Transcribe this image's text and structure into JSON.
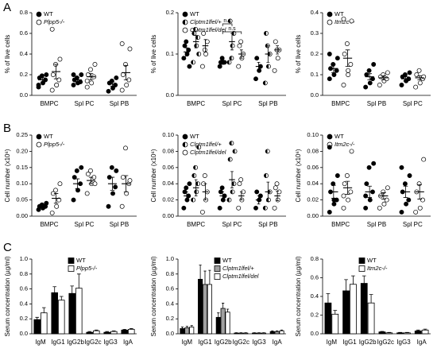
{
  "panel_labels": [
    "A",
    "B",
    "C"
  ],
  "chart_data": [
    {
      "type": "strip",
      "ylabel": "% of live cells",
      "categories": [
        "BMPC",
        "Spl PC",
        "Spl PB"
      ],
      "ylim": [
        0,
        0.8
      ],
      "yticks": [
        {
          "value": 0,
          "label": "0.0"
        },
        0.2,
        0.4,
        0.6,
        0.8
      ],
      "series": [
        {
          "name": "WT",
          "marker": "filled",
          "color": "#000000",
          "points": [
            [
              0.08,
              0.12,
              0.15,
              0.17,
              0.19,
              0.2,
              0.1
            ],
            [
              0.1,
              0.12,
              0.13,
              0.15,
              0.17,
              0.2,
              0.2
            ],
            [
              0.04,
              0.07,
              0.1,
              0.12,
              0.14,
              0.17
            ]
          ],
          "mean": [
            0.15,
            0.15,
            0.11
          ],
          "sem": [
            0.02,
            0.02,
            0.02
          ]
        },
        {
          "name": "Plpp5-/-",
          "marker": "open",
          "color": "#000000",
          "points": [
            [
              0.05,
              0.1,
              0.15,
              0.2,
              0.3,
              0.35,
              0.64,
              0.1
            ],
            [
              0.08,
              0.12,
              0.18,
              0.2,
              0.25,
              0.3,
              0.14
            ],
            [
              0.05,
              0.1,
              0.15,
              0.2,
              0.3,
              0.45,
              0.5
            ]
          ],
          "mean": [
            0.23,
            0.18,
            0.22
          ],
          "sem": [
            0.07,
            0.03,
            0.07
          ]
        }
      ]
    },
    {
      "type": "strip",
      "ylabel": "% of live cells",
      "categories": [
        "BMPC",
        "Spl PC",
        "Spl PB"
      ],
      "ylim": [
        0,
        0.2
      ],
      "yticks": [
        {
          "value": 0,
          "label": "0.0"
        },
        0.1,
        0.2
      ],
      "annotations": [
        "n.s",
        "n.s"
      ],
      "series": [
        {
          "name": "WT",
          "marker": "filled",
          "color": "#000000",
          "points": [
            [
              0.09,
              0.1,
              0.11,
              0.12,
              0.13,
              0.07
            ],
            [
              0.07,
              0.08,
              0.08,
              0.08,
              0.09
            ],
            [
              0.04,
              0.06,
              0.07,
              0.09
            ]
          ],
          "mean": [
            0.105,
            0.08,
            0.07
          ],
          "sem": [
            0.01,
            0.005,
            0.01
          ]
        },
        {
          "name": "Clptm1lfel/+",
          "marker": "half",
          "color": "#000000",
          "points": [
            [
              0.08,
              0.12,
              0.14,
              0.15,
              0.16,
              0.1
            ],
            [
              0.08,
              0.12,
              0.15,
              0.18,
              0.09
            ],
            [
              0.03,
              0.07,
              0.1,
              0.15,
              0.12
            ]
          ],
          "mean": [
            0.13,
            0.13,
            0.1
          ],
          "sem": [
            0.015,
            0.02,
            0.02
          ]
        },
        {
          "name": "Clptm1lfel/del",
          "marker": "open",
          "color": "#000000",
          "points": [
            [
              0.07,
              0.1,
              0.13,
              0.15,
              0.11
            ],
            [
              0.07,
              0.09,
              0.1,
              0.12,
              0.13
            ],
            [
              0.06,
              0.09,
              0.11,
              0.13,
              0.11
            ]
          ],
          "mean": [
            0.12,
            0.1,
            0.11
          ],
          "sem": [
            0.015,
            0.01,
            0.01
          ]
        }
      ]
    },
    {
      "type": "strip",
      "ylabel": "% of live cells",
      "categories": [
        "BMPC",
        "Spl PB",
        "Spl PC"
      ],
      "ylim": [
        0,
        0.4
      ],
      "yticks": [
        {
          "value": 0,
          "label": "0.0"
        },
        0.1,
        0.2,
        0.3,
        0.4
      ],
      "series": [
        {
          "name": "WT",
          "marker": "filled",
          "color": "#000000",
          "points": [
            [
              0.08,
              0.1,
              0.12,
              0.13,
              0.15,
              0.18,
              0.2
            ],
            [
              0.04,
              0.06,
              0.08,
              0.1,
              0.12,
              0.15
            ],
            [
              0.05,
              0.07,
              0.08,
              0.09,
              0.1,
              0.11
            ]
          ],
          "mean": [
            0.13,
            0.09,
            0.08
          ],
          "sem": [
            0.02,
            0.015,
            0.01
          ]
        },
        {
          "name": "Itm2c-/-",
          "marker": "open",
          "color": "#000000",
          "points": [
            [
              0.05,
              0.1,
              0.15,
              0.2,
              0.25,
              0.36,
              0.37,
              0.12
            ],
            [
              0.05,
              0.07,
              0.08,
              0.09,
              0.1,
              0.11
            ],
            [
              0.04,
              0.06,
              0.08,
              0.1,
              0.12,
              0.09
            ]
          ],
          "mean": [
            0.18,
            0.085,
            0.085
          ],
          "sem": [
            0.04,
            0.01,
            0.01
          ]
        }
      ]
    },
    {
      "type": "strip",
      "ylabel": "Cell number (x10⁶)",
      "categories": [
        "BMPC",
        "Spl PC",
        "Spl PB"
      ],
      "ylim": [
        0,
        0.25
      ],
      "yticks": [
        {
          "value": 0,
          "label": "0.00"
        },
        0.05,
        {
          "value": 0.1,
          "label": "0.10"
        },
        0.15,
        {
          "value": 0.2,
          "label": "0.20"
        },
        0.25
      ],
      "series": [
        {
          "name": "WT",
          "marker": "filled",
          "color": "#000000",
          "points": [
            [
              0.02,
              0.025,
              0.03,
              0.03,
              0.035,
              0.04
            ],
            [
              0.05,
              0.08,
              0.1,
              0.12,
              0.14,
              0.15
            ],
            [
              0.03,
              0.07,
              0.09,
              0.12,
              0.15,
              0.14
            ]
          ],
          "mean": [
            0.03,
            0.1,
            0.1
          ],
          "sem": [
            0.003,
            0.015,
            0.02
          ]
        },
        {
          "name": "Plpp5-/-",
          "marker": "open",
          "color": "#000000",
          "points": [
            [
              0.01,
              0.03,
              0.05,
              0.07,
              0.08,
              0.1
            ],
            [
              0.07,
              0.1,
              0.12,
              0.13,
              0.14,
              0.1
            ],
            [
              0.03,
              0.07,
              0.1,
              0.12,
              0.21,
              0.11
            ]
          ],
          "mean": [
            0.055,
            0.11,
            0.1
          ],
          "sem": [
            0.015,
            0.01,
            0.025
          ]
        }
      ]
    },
    {
      "type": "strip",
      "ylabel": "Cell number (x10⁶)",
      "categories": [
        "BMPC",
        "Spl PC",
        "Spl PB"
      ],
      "ylim": [
        0,
        0.1
      ],
      "yticks": [
        {
          "value": 0,
          "label": "0.00"
        },
        0.02,
        0.04,
        0.06,
        0.08,
        {
          "value": 0.1,
          "label": "0.10"
        }
      ],
      "series": [
        {
          "name": "WT",
          "marker": "filled",
          "color": "#000000",
          "points": [
            [
              0.01,
              0.02,
              0.025,
              0.03,
              0.035,
              0.04
            ],
            [
              0.01,
              0.02,
              0.025,
              0.03,
              0.035
            ],
            [
              0.01,
              0.02,
              0.025,
              0.03
            ]
          ],
          "mean": [
            0.025,
            0.025,
            0.02
          ],
          "sem": [
            0.005,
            0.005,
            0.005
          ]
        },
        {
          "name": "Clptm1lfel/+",
          "marker": "half",
          "color": "#000000",
          "points": [
            [
              0.02,
              0.03,
              0.04,
              0.05,
              0.06,
              0.085
            ],
            [
              0.02,
              0.03,
              0.04,
              0.07,
              0.09,
              0.08
            ],
            [
              0.01,
              0.02,
              0.03,
              0.05,
              0.08
            ]
          ],
          "mean": [
            0.035,
            0.045,
            0.03
          ],
          "sem": [
            0.01,
            0.01,
            0.012
          ]
        },
        {
          "name": "Clptm1lfel/del",
          "marker": "open",
          "color": "#000000",
          "points": [
            [
              0.005,
              0.02,
              0.03,
              0.04,
              0.05
            ],
            [
              0.01,
              0.02,
              0.03,
              0.04,
              0.045
            ],
            [
              0.01,
              0.02,
              0.03,
              0.035,
              0.04
            ]
          ],
          "mean": [
            0.03,
            0.025,
            0.025
          ],
          "sem": [
            0.01,
            0.005,
            0.006
          ]
        }
      ]
    },
    {
      "type": "strip",
      "ylabel": "Cell number (x10⁶)",
      "categories": [
        "BMPC",
        "Spl PB",
        "Spl PC"
      ],
      "ylim": [
        0,
        0.1
      ],
      "yticks": [
        {
          "value": 0,
          "label": "0.00"
        },
        0.02,
        0.04,
        0.06,
        0.08,
        {
          "value": 0.1,
          "label": "0.10"
        }
      ],
      "series": [
        {
          "name": "WT",
          "marker": "filled",
          "color": "#000000",
          "points": [
            [
              0.005,
              0.015,
              0.02,
              0.03,
              0.04,
              0.05,
              0.085,
              0.02
            ],
            [
              0.01,
              0.02,
              0.03,
              0.04,
              0.06,
              0.065,
              0.025
            ],
            [
              0.005,
              0.015,
              0.02,
              0.03,
              0.04,
              0.05,
              0.06
            ]
          ],
          "mean": [
            0.03,
            0.03,
            0.03
          ],
          "sem": [
            0.008,
            0.007,
            0.007
          ]
        },
        {
          "name": "Itm2c-/-",
          "marker": "open",
          "color": "#000000",
          "points": [
            [
              0.01,
              0.02,
              0.03,
              0.04,
              0.05,
              0.08,
              0.025
            ],
            [
              0.01,
              0.015,
              0.02,
              0.025,
              0.03,
              0.035
            ],
            [
              0.005,
              0.01,
              0.02,
              0.03,
              0.04,
              0.07
            ]
          ],
          "mean": [
            0.035,
            0.025,
            0.03
          ],
          "sem": [
            0.008,
            0.004,
            0.009
          ]
        }
      ]
    },
    {
      "type": "bar",
      "ylabel": "Serum concentration (µg/ml)",
      "categories": [
        "IgM",
        "IgG1",
        "IgG2b",
        "IgG2c",
        "IgG3",
        "IgA"
      ],
      "ylim": [
        0,
        1
      ],
      "yticks": [
        {
          "value": 0,
          "label": "0.0"
        },
        0.2,
        0.4,
        0.6,
        0.8,
        {
          "value": 1,
          "label": "1.0"
        }
      ],
      "series": [
        {
          "name": "WT",
          "color": "#000000",
          "values": [
            0.19,
            0.55,
            0.54,
            0.02,
            0.02,
            0.05
          ],
          "errors": [
            0.03,
            0.08,
            0.1,
            0.01,
            0.01,
            0.01
          ]
        },
        {
          "name": "Plpp5-/-",
          "color": "#ffffff",
          "values": [
            0.28,
            0.45,
            0.61,
            0.04,
            0.03,
            0.06
          ],
          "errors": [
            0.07,
            0.05,
            0.19,
            0.01,
            0.01,
            0.01
          ]
        }
      ]
    },
    {
      "type": "bar",
      "ylabel": "Serum concentration (µg/ml)",
      "categories": [
        "IgM",
        "IgG1",
        "IgG2b",
        "IgG2c",
        "IgG3",
        "IgA"
      ],
      "ylim": [
        0,
        1
      ],
      "yticks": [
        {
          "value": 0,
          "label": "0.0"
        },
        0.2,
        0.4,
        0.6,
        0.8,
        {
          "value": 1,
          "label": "1.0"
        }
      ],
      "series": [
        {
          "name": "WT",
          "color": "#000000",
          "values": [
            0.07,
            0.73,
            0.22,
            0.01,
            0.01,
            0.03
          ],
          "errors": [
            0.02,
            0.19,
            0.06,
            0.005,
            0.005,
            0.01
          ]
        },
        {
          "name": "Clptm1lfel/+",
          "color": "#a0a0a0",
          "values": [
            0.08,
            0.66,
            0.34,
            0.01,
            0.01,
            0.03
          ],
          "errors": [
            0.02,
            0.18,
            0.07,
            0.005,
            0.005,
            0.01
          ]
        },
        {
          "name": "Clptm1lfel/del",
          "color": "#ffffff",
          "values": [
            0.09,
            0.66,
            0.29,
            0.01,
            0.01,
            0.04
          ],
          "errors": [
            0.02,
            0.19,
            0.04,
            0.005,
            0.005,
            0.01
          ]
        }
      ]
    },
    {
      "type": "bar",
      "ylabel": "Serum concentration (µg/ml)",
      "categories": [
        "IgM",
        "IgG1",
        "IgG2b",
        "IgG2c",
        "IgG3",
        "IgA"
      ],
      "ylim": [
        0,
        0.8
      ],
      "yticks": [
        {
          "value": 0,
          "label": "0.0"
        },
        0.2,
        0.4,
        0.6,
        0.8
      ],
      "series": [
        {
          "name": "WT",
          "color": "#000000",
          "values": [
            0.33,
            0.46,
            0.54,
            0.02,
            0.01,
            0.03
          ],
          "errors": [
            0.1,
            0.12,
            0.08,
            0.005,
            0.005,
            0.01
          ]
        },
        {
          "name": "Itm2c-/-",
          "color": "#ffffff",
          "values": [
            0.21,
            0.53,
            0.33,
            0.01,
            0.01,
            0.04
          ],
          "errors": [
            0.04,
            0.09,
            0.09,
            0.005,
            0.005,
            0.01
          ]
        }
      ]
    }
  ]
}
